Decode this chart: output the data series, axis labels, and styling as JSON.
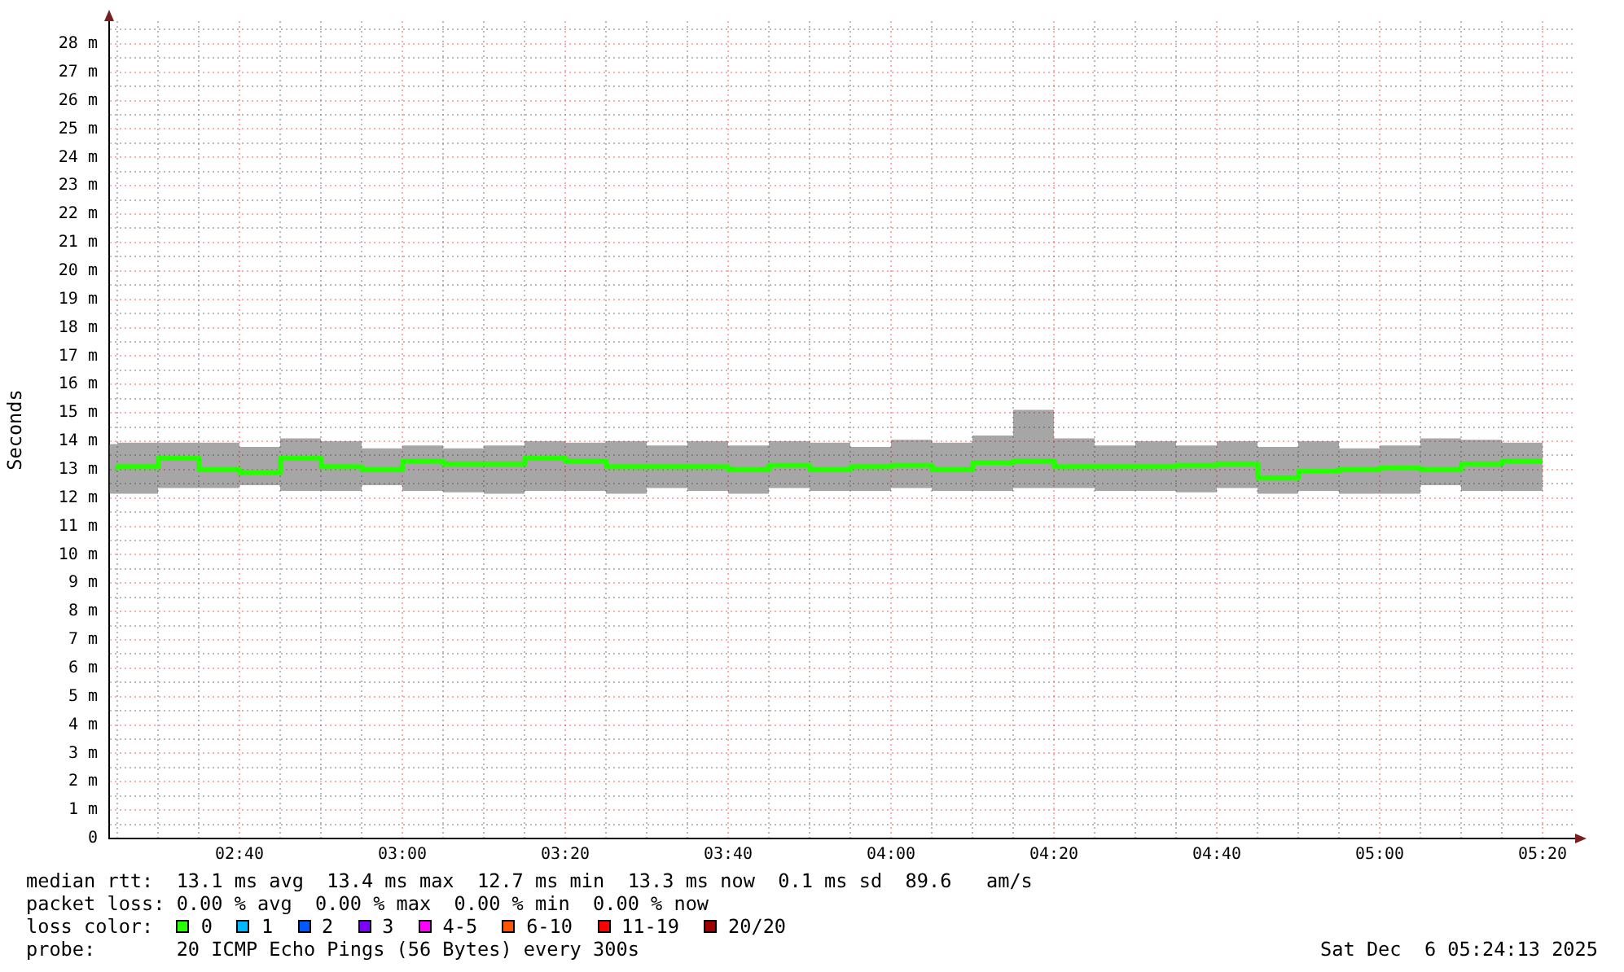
{
  "chart_data": {
    "type": "step",
    "ylabel": "Seconds",
    "x": [
      "2025-12-06T02:25",
      "2025-12-06T02:30",
      "2025-12-06T02:35",
      "2025-12-06T02:40",
      "2025-12-06T02:45",
      "2025-12-06T02:50",
      "2025-12-06T02:55",
      "2025-12-06T03:00",
      "2025-12-06T03:05",
      "2025-12-06T03:10",
      "2025-12-06T03:15",
      "2025-12-06T03:20",
      "2025-12-06T03:25",
      "2025-12-06T03:30",
      "2025-12-06T03:35",
      "2025-12-06T03:40",
      "2025-12-06T03:45",
      "2025-12-06T03:50",
      "2025-12-06T03:55",
      "2025-12-06T04:00",
      "2025-12-06T04:05",
      "2025-12-06T04:10",
      "2025-12-06T04:15",
      "2025-12-06T04:20",
      "2025-12-06T04:25",
      "2025-12-06T04:30",
      "2025-12-06T04:35",
      "2025-12-06T04:40",
      "2025-12-06T04:45",
      "2025-12-06T04:50",
      "2025-12-06T04:55",
      "2025-12-06T05:00",
      "2025-12-06T05:05",
      "2025-12-06T05:10",
      "2025-12-06T05:15",
      "2025-12-06T05:20"
    ],
    "series": [
      {
        "name": "0",
        "color": "#26ff00",
        "values": [
          13.0,
          13.1,
          13.4,
          13.0,
          12.9,
          13.4,
          13.1,
          13.0,
          13.3,
          13.2,
          13.2,
          13.4,
          13.3,
          13.1,
          13.1,
          13.1,
          13.0,
          13.15,
          13.0,
          13.1,
          13.15,
          13.0,
          13.25,
          13.3,
          13.1,
          13.1,
          13.1,
          13.15,
          13.2,
          12.7,
          12.95,
          13.0,
          13.05,
          13.0,
          13.2,
          13.3
        ],
        "lower": [
          12.15,
          12.15,
          12.35,
          12.35,
          12.45,
          12.25,
          12.25,
          12.45,
          12.25,
          12.2,
          12.15,
          12.25,
          12.25,
          12.15,
          12.35,
          12.25,
          12.15,
          12.35,
          12.25,
          12.25,
          12.35,
          12.25,
          12.25,
          12.35,
          12.35,
          12.25,
          12.25,
          12.2,
          12.35,
          12.15,
          12.25,
          12.15,
          12.15,
          12.45,
          12.25,
          12.25
        ],
        "upper": [
          13.9,
          13.95,
          13.95,
          13.95,
          13.8,
          14.1,
          14.0,
          13.75,
          13.85,
          13.75,
          13.85,
          14.0,
          13.95,
          14.0,
          13.85,
          14.0,
          13.85,
          14.0,
          13.95,
          13.8,
          14.05,
          13.95,
          14.2,
          15.1,
          14.1,
          13.85,
          14.0,
          13.85,
          14.0,
          13.8,
          14.0,
          13.75,
          13.85,
          14.1,
          14.05,
          13.95
        ]
      },
      {
        "name": "1",
        "color": "#00b8ff",
        "values": [
          null,
          null,
          null,
          null,
          null,
          null,
          null,
          null,
          null,
          null,
          null,
          null,
          null,
          null,
          null,
          null,
          null,
          null,
          null,
          null,
          null,
          null,
          null,
          null,
          null,
          null,
          null,
          null,
          null,
          null,
          null,
          null,
          null,
          null,
          null,
          null
        ]
      },
      {
        "name": "2",
        "color": "#0059ff",
        "values": [
          null,
          null,
          null,
          null,
          null,
          null,
          null,
          null,
          null,
          null,
          null,
          null,
          null,
          null,
          null,
          null,
          null,
          null,
          null,
          null,
          null,
          null,
          null,
          null,
          null,
          null,
          null,
          null,
          null,
          null,
          null,
          null,
          null,
          null,
          null,
          null
        ]
      },
      {
        "name": "3",
        "color": "#7e00ff",
        "values": [
          null,
          null,
          null,
          null,
          null,
          null,
          null,
          null,
          null,
          null,
          null,
          null,
          null,
          null,
          null,
          null,
          null,
          null,
          null,
          null,
          null,
          null,
          null,
          null,
          null,
          null,
          null,
          null,
          null,
          null,
          null,
          null,
          null,
          null,
          null,
          null
        ]
      },
      {
        "name": "4-5",
        "color": "#ff00ff",
        "values": [
          null,
          null,
          null,
          null,
          null,
          null,
          null,
          null,
          null,
          null,
          null,
          null,
          null,
          null,
          null,
          null,
          null,
          null,
          null,
          null,
          null,
          null,
          null,
          null,
          null,
          null,
          null,
          null,
          null,
          null,
          null,
          null,
          null,
          null,
          null,
          null
        ]
      },
      {
        "name": "6-10",
        "color": "#ff5500",
        "values": [
          null,
          null,
          null,
          null,
          null,
          null,
          null,
          null,
          null,
          null,
          null,
          null,
          null,
          null,
          null,
          null,
          null,
          null,
          null,
          null,
          null,
          null,
          null,
          null,
          null,
          null,
          null,
          null,
          null,
          null,
          null,
          null,
          null,
          null,
          null,
          null
        ]
      },
      {
        "name": "11-19",
        "color": "#ff0000",
        "values": [
          null,
          null,
          null,
          null,
          null,
          null,
          null,
          null,
          null,
          null,
          null,
          null,
          null,
          null,
          null,
          null,
          null,
          null,
          null,
          null,
          null,
          null,
          null,
          null,
          null,
          null,
          null,
          null,
          null,
          null,
          null,
          null,
          null,
          null,
          null,
          null
        ]
      },
      {
        "name": "20/20",
        "color": "#a10000",
        "values": [
          null,
          null,
          null,
          null,
          null,
          null,
          null,
          null,
          null,
          null,
          null,
          null,
          null,
          null,
          null,
          null,
          null,
          null,
          null,
          null,
          null,
          null,
          null,
          null,
          null,
          null,
          null,
          null,
          null,
          null,
          null,
          null,
          null,
          null,
          null,
          null
        ]
      }
    ],
    "xlim": [
      "2025-12-06T02:24",
      "2025-12-06T05:24"
    ],
    "xticks": [
      {
        "value": "2025-12-06T02:25",
        "label": null
      },
      {
        "value": "2025-12-06T02:30",
        "label": null
      },
      {
        "value": "2025-12-06T02:35",
        "label": null
      },
      {
        "value": "2025-12-06T02:40",
        "label": "02:40"
      },
      {
        "value": "2025-12-06T02:45",
        "label": null
      },
      {
        "value": "2025-12-06T02:50",
        "label": null
      },
      {
        "value": "2025-12-06T02:55",
        "label": null
      },
      {
        "value": "2025-12-06T03:00",
        "label": "03:00"
      },
      {
        "value": "2025-12-06T03:05",
        "label": null
      },
      {
        "value": "2025-12-06T03:10",
        "label": null
      },
      {
        "value": "2025-12-06T03:15",
        "label": null
      },
      {
        "value": "2025-12-06T03:20",
        "label": "03:20"
      },
      {
        "value": "2025-12-06T03:25",
        "label": null
      },
      {
        "value": "2025-12-06T03:30",
        "label": null
      },
      {
        "value": "2025-12-06T03:35",
        "label": null
      },
      {
        "value": "2025-12-06T03:40",
        "label": "03:40"
      },
      {
        "value": "2025-12-06T03:45",
        "label": null
      },
      {
        "value": "2025-12-06T03:50",
        "label": null
      },
      {
        "value": "2025-12-06T03:55",
        "label": null
      },
      {
        "value": "2025-12-06T04:00",
        "label": "04:00"
      },
      {
        "value": "2025-12-06T04:05",
        "label": null
      },
      {
        "value": "2025-12-06T04:10",
        "label": null
      },
      {
        "value": "2025-12-06T04:15",
        "label": null
      },
      {
        "value": "2025-12-06T04:20",
        "label": "04:20"
      },
      {
        "value": "2025-12-06T04:25",
        "label": null
      },
      {
        "value": "2025-12-06T04:30",
        "label": null
      },
      {
        "value": "2025-12-06T04:35",
        "label": null
      },
      {
        "value": "2025-12-06T04:40",
        "label": "04:40"
      },
      {
        "value": "2025-12-06T04:45",
        "label": null
      },
      {
        "value": "2025-12-06T04:50",
        "label": null
      },
      {
        "value": "2025-12-06T04:55",
        "label": null
      },
      {
        "value": "2025-12-06T05:00",
        "label": "05:00"
      },
      {
        "value": "2025-12-06T05:05",
        "label": null
      },
      {
        "value": "2025-12-06T05:10",
        "label": null
      },
      {
        "value": "2025-12-06T05:15",
        "label": null
      },
      {
        "value": "2025-12-06T05:20",
        "label": "05:20"
      }
    ],
    "ylim": [
      0,
      28.8
    ],
    "yticks": [
      0,
      {
        "value": 0.5,
        "label": null
      },
      {
        "value": 1,
        "label": "1 m"
      },
      {
        "value": 1.5,
        "label": null
      },
      {
        "value": 2,
        "label": "2 m"
      },
      {
        "value": 2.5,
        "label": null
      },
      {
        "value": 3,
        "label": "3 m"
      },
      {
        "value": 3.5,
        "label": null
      },
      {
        "value": 4,
        "label": "4 m"
      },
      {
        "value": 4.5,
        "label": null
      },
      {
        "value": 5,
        "label": "5 m"
      },
      {
        "value": 5.5,
        "label": null
      },
      {
        "value": 6,
        "label": "6 m"
      },
      {
        "value": 6.5,
        "label": null
      },
      {
        "value": 7,
        "label": "7 m"
      },
      {
        "value": 7.5,
        "label": null
      },
      {
        "value": 8,
        "label": "8 m"
      },
      {
        "value": 8.5,
        "label": null
      },
      {
        "value": 9,
        "label": "9 m"
      },
      {
        "value": 9.5,
        "label": null
      },
      {
        "value": 10,
        "label": "10 m"
      },
      {
        "value": 10.5,
        "label": null
      },
      {
        "value": 11,
        "label": "11 m"
      },
      {
        "value": 11.5,
        "label": null
      },
      {
        "value": 12,
        "label": "12 m"
      },
      {
        "value": 12.5,
        "label": null
      },
      {
        "value": 13,
        "label": "13 m"
      },
      {
        "value": 13.5,
        "label": null
      },
      {
        "value": 14,
        "label": "14 m"
      },
      {
        "value": 14.5,
        "label": null
      },
      {
        "value": 15,
        "label": "15 m"
      },
      {
        "value": 15.5,
        "label": null
      },
      {
        "value": 16,
        "label": "16 m"
      },
      {
        "value": 16.5,
        "label": null
      },
      {
        "value": 17,
        "label": "17 m"
      },
      {
        "value": 17.5,
        "label": null
      },
      {
        "value": 18,
        "label": "18 m"
      },
      {
        "value": 18.5,
        "label": null
      },
      {
        "value": 19,
        "label": "19 m"
      },
      {
        "value": 19.5,
        "label": null
      },
      {
        "value": 20,
        "label": "20 m"
      },
      {
        "value": 20.5,
        "label": null
      },
      {
        "value": 21,
        "label": "21 m"
      },
      {
        "value": 21.5,
        "label": null
      },
      {
        "value": 22,
        "label": "22 m"
      },
      {
        "value": 22.5,
        "label": null
      },
      {
        "value": 23,
        "label": "23 m"
      },
      {
        "value": 23.5,
        "label": null
      },
      {
        "value": 24,
        "label": "24 m"
      },
      {
        "value": 24.5,
        "label": null
      },
      {
        "value": 25,
        "label": "25 m"
      },
      {
        "value": 25.5,
        "label": null
      },
      {
        "value": 26,
        "label": "26 m"
      },
      {
        "value": 26.5,
        "label": null
      },
      {
        "value": 27,
        "label": "27 m"
      },
      {
        "value": 27.5,
        "label": null
      },
      {
        "value": 28,
        "label": "28 m"
      },
      {
        "value": 28.5,
        "label": null
      }
    ],
    "grid": true,
    "legend": "bottom",
    "legend_title": "loss color:",
    "annotations": [
      "median rtt:  13.1 ms avg  13.4 ms max  12.7 ms min  13.3 ms now  0.1 ms sd  89.6   am/s",
      "packet loss: 0.00 % avg  0.00 % max  0.00 % min  0.00 % now",
      "probe:       20 ICMP Echo Pings (56 Bytes) every 300s",
      "Sat Dec  6 05:24:13 2025"
    ]
  }
}
